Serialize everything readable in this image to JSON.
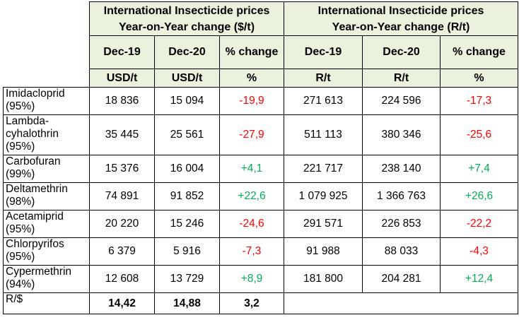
{
  "headers": {
    "usd_title_line1": "International Insecticide prices",
    "usd_title_line2": "Year-on-Year change ($/t)",
    "zar_title_line1": "International Insecticide prices",
    "zar_title_line2": "Year-on-Year change (R/t)",
    "cols": [
      "Dec-19",
      "Dec-20",
      "% change",
      "Dec-19",
      "Dec-20",
      "% change"
    ],
    "units": [
      "USD/t",
      "USD/t",
      "%",
      "R/t",
      "R/t",
      "%"
    ]
  },
  "rows": [
    {
      "name": "Imidacloprid (95%)",
      "v": [
        "18 836",
        "15 094",
        "-19,9",
        "271 613",
        "224 596",
        "-17,3"
      ]
    },
    {
      "name": "Lambda-cyhalothrin (95%)",
      "v": [
        "35 445",
        "25 561",
        "-27,9",
        "511 113",
        "380 346",
        "-25,6"
      ]
    },
    {
      "name": "Carbofuran (99%)",
      "v": [
        "15 376",
        "16 004",
        "+4,1",
        "221 717",
        "238 140",
        "+7,4"
      ]
    },
    {
      "name": "Deltamethrin (98%)",
      "v": [
        "74 891",
        "91 852",
        "+22,6",
        "1 079 925",
        "1 366 763",
        "+26,6"
      ]
    },
    {
      "name": "Acetamiprid (95%)",
      "v": [
        "20 220",
        "15 246",
        "-24,6",
        "291 571",
        "226 853",
        "-22,2"
      ]
    },
    {
      "name": "Chlorpyrifos (95%)",
      "v": [
        "6 379",
        "5 916",
        "-7,3",
        "91 988",
        "88 033",
        "-4,3"
      ]
    },
    {
      "name": "Cypermethrin (94%)",
      "v": [
        "12 608",
        "13 729",
        "+8,9",
        "181 800",
        "204 281",
        "+12,4"
      ]
    }
  ],
  "rate_row": {
    "label": "R/$",
    "v": [
      "14,42",
      "14,88",
      "3,2"
    ]
  },
  "colors": {
    "header_bg": "#eaf1dd",
    "negative": "#ff0000",
    "positive": "#00b050"
  }
}
